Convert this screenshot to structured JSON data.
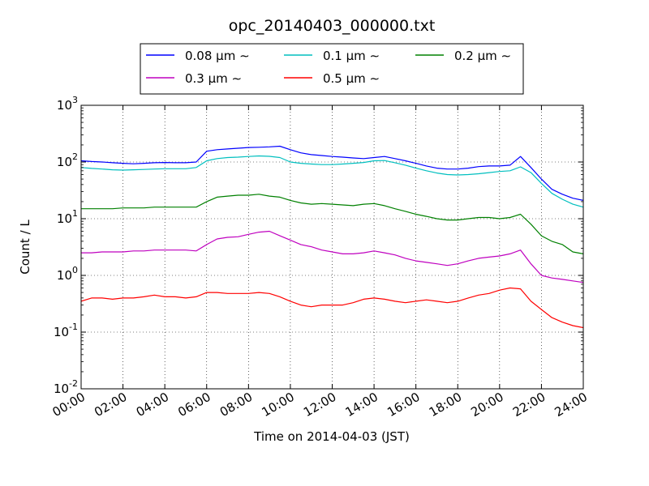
{
  "chart_data": {
    "type": "line",
    "title": "opc_20140403_000000.txt",
    "xlabel": "Time on 2014-04-03 (JST)",
    "ylabel": "Count / L",
    "x_unit": "hour of day (JST)",
    "xlim": [
      0,
      24
    ],
    "ylim": [
      0.01,
      1000
    ],
    "yscale": "log",
    "grid": true,
    "legend_position": "top-center",
    "x_ticks": [
      "00:00",
      "02:00",
      "04:00",
      "06:00",
      "08:00",
      "10:00",
      "12:00",
      "14:00",
      "16:00",
      "18:00",
      "20:00",
      "22:00",
      "24:00"
    ],
    "y_ticks": [
      {
        "base": "10",
        "exp": "-2"
      },
      {
        "base": "10",
        "exp": "-1"
      },
      {
        "base": "10",
        "exp": "0"
      },
      {
        "base": "10",
        "exp": "1"
      },
      {
        "base": "10",
        "exp": "2"
      },
      {
        "base": "10",
        "exp": "3"
      }
    ],
    "x": [
      0,
      0.5,
      1,
      1.5,
      2,
      2.5,
      3,
      3.5,
      4,
      4.5,
      5,
      5.5,
      6,
      6.5,
      7,
      7.5,
      8,
      8.5,
      9,
      9.5,
      10,
      10.5,
      11,
      11.5,
      12,
      12.5,
      13,
      13.5,
      14,
      14.5,
      15,
      15.5,
      16,
      16.5,
      17,
      17.5,
      18,
      18.5,
      19,
      19.5,
      20,
      20.5,
      21,
      21.5,
      22,
      22.5,
      23,
      23.5,
      24
    ],
    "series": [
      {
        "name": "0.08 μm ∼",
        "color": "#0000ff",
        "values": [
          105,
          102,
          100,
          97,
          95,
          93,
          95,
          97,
          98,
          97,
          97,
          100,
          155,
          165,
          170,
          175,
          180,
          182,
          185,
          190,
          165,
          145,
          135,
          130,
          125,
          122,
          118,
          115,
          120,
          125,
          115,
          105,
          95,
          85,
          78,
          75,
          75,
          78,
          83,
          85,
          85,
          88,
          125,
          80,
          50,
          33,
          27,
          23,
          21
        ]
      },
      {
        "name": "0.1 μm ∼",
        "color": "#00bfbf",
        "values": [
          80,
          77,
          75,
          73,
          72,
          73,
          74,
          75,
          76,
          76,
          76,
          80,
          105,
          115,
          120,
          122,
          125,
          128,
          126,
          120,
          100,
          95,
          92,
          90,
          90,
          92,
          95,
          98,
          105,
          106,
          97,
          88,
          78,
          70,
          64,
          60,
          59,
          60,
          62,
          65,
          68,
          70,
          82,
          65,
          42,
          28,
          22,
          18,
          16
        ]
      },
      {
        "name": "0.2 μm ∼",
        "color": "#008000",
        "values": [
          15,
          15,
          15,
          15,
          15.5,
          15.5,
          15.5,
          16,
          16,
          16,
          16,
          16,
          20,
          24,
          25,
          26,
          26,
          27,
          25,
          24,
          21,
          19,
          18,
          18.5,
          18,
          17.5,
          17,
          18,
          18.5,
          17,
          15,
          13.5,
          12,
          11,
          10,
          9.5,
          9.5,
          10,
          10.5,
          10.5,
          10,
          10.5,
          12,
          8,
          5,
          4,
          3.5,
          2.6,
          2.4
        ]
      },
      {
        "name": "0.3 μm ∼",
        "color": "#bf00bf",
        "values": [
          2.5,
          2.5,
          2.6,
          2.6,
          2.6,
          2.7,
          2.7,
          2.8,
          2.8,
          2.8,
          2.8,
          2.7,
          3.5,
          4.4,
          4.7,
          4.8,
          5.3,
          5.8,
          6,
          5,
          4.2,
          3.5,
          3.2,
          2.8,
          2.6,
          2.4,
          2.4,
          2.5,
          2.7,
          2.5,
          2.3,
          2.0,
          1.8,
          1.7,
          1.6,
          1.5,
          1.6,
          1.8,
          2.0,
          2.1,
          2.2,
          2.4,
          2.8,
          1.6,
          1.0,
          0.9,
          0.85,
          0.8,
          0.75
        ]
      },
      {
        "name": "0.5 μm ∼",
        "color": "#ff0000",
        "values": [
          0.35,
          0.4,
          0.4,
          0.38,
          0.4,
          0.4,
          0.42,
          0.45,
          0.42,
          0.42,
          0.4,
          0.42,
          0.5,
          0.5,
          0.48,
          0.48,
          0.48,
          0.5,
          0.48,
          0.42,
          0.35,
          0.3,
          0.28,
          0.3,
          0.3,
          0.3,
          0.33,
          0.38,
          0.4,
          0.38,
          0.35,
          0.33,
          0.35,
          0.37,
          0.35,
          0.33,
          0.35,
          0.4,
          0.45,
          0.48,
          0.55,
          0.6,
          0.58,
          0.35,
          0.25,
          0.18,
          0.15,
          0.13,
          0.12
        ]
      }
    ]
  }
}
